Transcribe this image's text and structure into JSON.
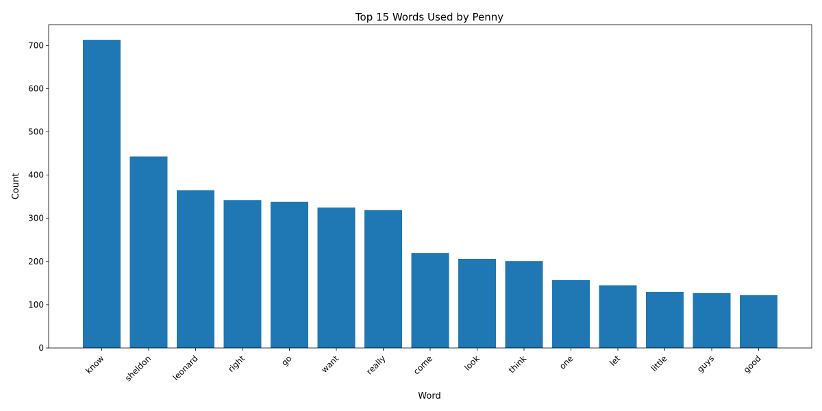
{
  "chart_data": {
    "type": "bar",
    "title": "Top 15 Words Used by Penny",
    "xlabel": "Word",
    "ylabel": "Count",
    "categories": [
      "know",
      "sheldon",
      "leonard",
      "right",
      "go",
      "want",
      "really",
      "come",
      "look",
      "think",
      "one",
      "let",
      "little",
      "guys",
      "good"
    ],
    "values": [
      713,
      443,
      365,
      342,
      338,
      325,
      319,
      220,
      206,
      201,
      157,
      145,
      130,
      127,
      122
    ],
    "ylim": [
      0,
      748
    ],
    "yticks": [
      0,
      100,
      200,
      300,
      400,
      500,
      600,
      700
    ],
    "ytick_labels": [
      "0",
      "100",
      "200",
      "300",
      "400",
      "500",
      "600",
      "700"
    ],
    "bar_color": "#1f77b4",
    "grid": false,
    "legend": false
  }
}
